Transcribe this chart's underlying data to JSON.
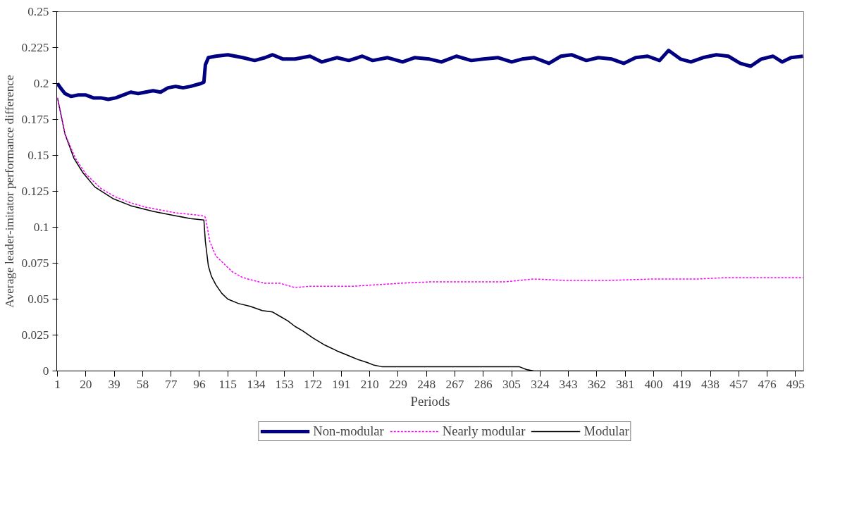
{
  "chart_data": {
    "type": "line",
    "xlabel": "Periods",
    "ylabel": "Average leader-imitator performance difference",
    "xlim": [
      0.5,
      500.5
    ],
    "xticks": [
      1,
      20,
      39,
      58,
      77,
      96,
      115,
      134,
      153,
      172,
      191,
      210,
      229,
      248,
      267,
      286,
      305,
      324,
      343,
      362,
      381,
      400,
      419,
      438,
      457,
      476,
      495
    ],
    "ylim": [
      0,
      0.25
    ],
    "yticks": [
      0,
      0.025,
      0.05,
      0.075,
      0.1,
      0.125,
      0.15,
      0.175,
      0.2,
      0.225,
      0.25
    ],
    "grid": false,
    "legend": "bottom",
    "marker": "none",
    "series": [
      {
        "name": "Non-modular",
        "color": "#000080",
        "line_style": "solid",
        "x": [
          1,
          3,
          6,
          10,
          15,
          20,
          25,
          30,
          35,
          40,
          45,
          50,
          55,
          60,
          65,
          70,
          75,
          80,
          85,
          90,
          97,
          99,
          100,
          102,
          107,
          115,
          125,
          133,
          140,
          145,
          152,
          160,
          170,
          178,
          188,
          196,
          205,
          212,
          222,
          232,
          240,
          250,
          258,
          268,
          278,
          286,
          296,
          305,
          312,
          320,
          330,
          338,
          345,
          355,
          363,
          372,
          380,
          388,
          396,
          404,
          410,
          418,
          425,
          433,
          442,
          450,
          458,
          465,
          472,
          480,
          486,
          492,
          500
        ],
        "values": [
          0.2,
          0.197,
          0.193,
          0.191,
          0.192,
          0.192,
          0.19,
          0.19,
          0.189,
          0.19,
          0.192,
          0.194,
          0.193,
          0.194,
          0.195,
          0.194,
          0.197,
          0.198,
          0.197,
          0.198,
          0.2,
          0.201,
          0.213,
          0.218,
          0.219,
          0.22,
          0.218,
          0.216,
          0.218,
          0.22,
          0.217,
          0.217,
          0.219,
          0.215,
          0.218,
          0.216,
          0.219,
          0.216,
          0.218,
          0.215,
          0.218,
          0.217,
          0.215,
          0.219,
          0.216,
          0.217,
          0.218,
          0.215,
          0.217,
          0.218,
          0.214,
          0.219,
          0.22,
          0.216,
          0.218,
          0.217,
          0.214,
          0.218,
          0.219,
          0.216,
          0.223,
          0.217,
          0.215,
          0.218,
          0.22,
          0.219,
          0.214,
          0.212,
          0.217,
          0.219,
          0.215,
          0.218,
          0.219
        ]
      },
      {
        "name": "Nearly modular",
        "color": "#ff00ff",
        "line_style": "dotted",
        "x": [
          1,
          6,
          13,
          20,
          30,
          40,
          50,
          60,
          70,
          80,
          90,
          98,
          100,
          103,
          107,
          112,
          118,
          125,
          132,
          140,
          150,
          160,
          170,
          185,
          200,
          215,
          230,
          250,
          280,
          300,
          320,
          340,
          370,
          400,
          430,
          450,
          470,
          500
        ],
        "values": [
          0.19,
          0.165,
          0.148,
          0.137,
          0.127,
          0.121,
          0.117,
          0.114,
          0.112,
          0.11,
          0.109,
          0.108,
          0.107,
          0.09,
          0.08,
          0.075,
          0.069,
          0.065,
          0.063,
          0.061,
          0.061,
          0.058,
          0.059,
          0.059,
          0.059,
          0.06,
          0.061,
          0.062,
          0.062,
          0.062,
          0.064,
          0.063,
          0.063,
          0.064,
          0.064,
          0.065,
          0.065,
          0.065
        ]
      },
      {
        "name": "Modular",
        "color": "#000000",
        "line_style": "solid",
        "x": [
          1,
          6,
          12,
          18,
          26,
          38,
          50,
          65,
          80,
          90,
          99,
          100,
          102,
          104,
          107,
          111,
          115,
          122,
          130,
          138,
          145,
          150,
          155,
          160,
          165,
          172,
          180,
          188,
          195,
          202,
          208,
          213,
          218,
          260,
          310,
          315,
          320,
          400,
          500
        ],
        "values": [
          0.19,
          0.165,
          0.148,
          0.138,
          0.128,
          0.12,
          0.115,
          0.111,
          0.108,
          0.106,
          0.105,
          0.09,
          0.073,
          0.066,
          0.06,
          0.054,
          0.05,
          0.047,
          0.045,
          0.042,
          0.041,
          0.038,
          0.035,
          0.031,
          0.028,
          0.023,
          0.018,
          0.014,
          0.011,
          0.008,
          0.006,
          0.004,
          0.003,
          0.003,
          0.003,
          0.001,
          0,
          0,
          0
        ]
      }
    ]
  }
}
